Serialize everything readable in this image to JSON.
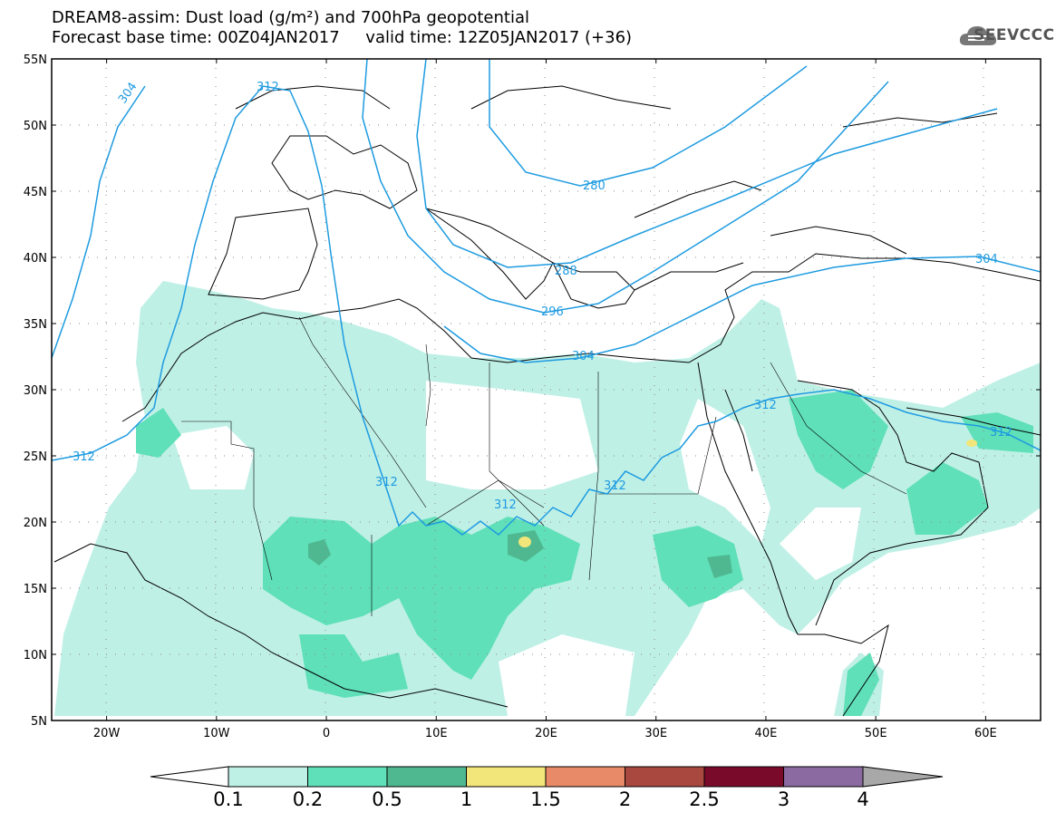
{
  "title": {
    "line1": "DREAM8-assim: Dust load (g/m²) and 700hPa geopotential",
    "line2": "Forecast base time: 00Z04JAN2017     valid time: 12Z05JAN2017 (+36)"
  },
  "logo": {
    "text": "SEEVCCC",
    "icon": "cloud-icon"
  },
  "map": {
    "lon_range": [
      -25,
      65
    ],
    "lat_range": [
      5,
      55
    ],
    "lon_ticks": [
      "20W",
      "10W",
      "0",
      "10E",
      "20E",
      "30E",
      "40E",
      "50E",
      "60E"
    ],
    "lat_ticks": [
      "55N",
      "50N",
      "45N",
      "40N",
      "35N",
      "30N",
      "25N",
      "20N",
      "15N",
      "10N",
      "5N"
    ],
    "grid": "dotted"
  },
  "contours": {
    "variable": "700hPa geopotential",
    "color": "#1e9be0",
    "labels": [
      "304",
      "312",
      "280",
      "288",
      "296",
      "304",
      "304",
      "312",
      "312",
      "312",
      "312",
      "312",
      "312"
    ]
  },
  "colorbar": {
    "ticks": [
      "0.1",
      "0.2",
      "0.5",
      "1",
      "1.5",
      "2",
      "2.5",
      "3",
      "4"
    ],
    "colors": [
      "#ffffff",
      "#bff0e6",
      "#5fe0b8",
      "#4fb890",
      "#f2e67a",
      "#e88a68",
      "#a8483e",
      "#7a0a2a",
      "#8a6aa0",
      "#a8a8a8"
    ]
  },
  "chart_data": {
    "type": "heatmap",
    "title": "DREAM8-assim: Dust load (g/m²) and 700hPa geopotential",
    "xlabel": "",
    "ylabel": "",
    "xlim": [
      -25,
      65
    ],
    "ylim": [
      5,
      55
    ],
    "levels": [
      0.1,
      0.2,
      0.5,
      1,
      1.5,
      2,
      2.5,
      3,
      4
    ]
  }
}
